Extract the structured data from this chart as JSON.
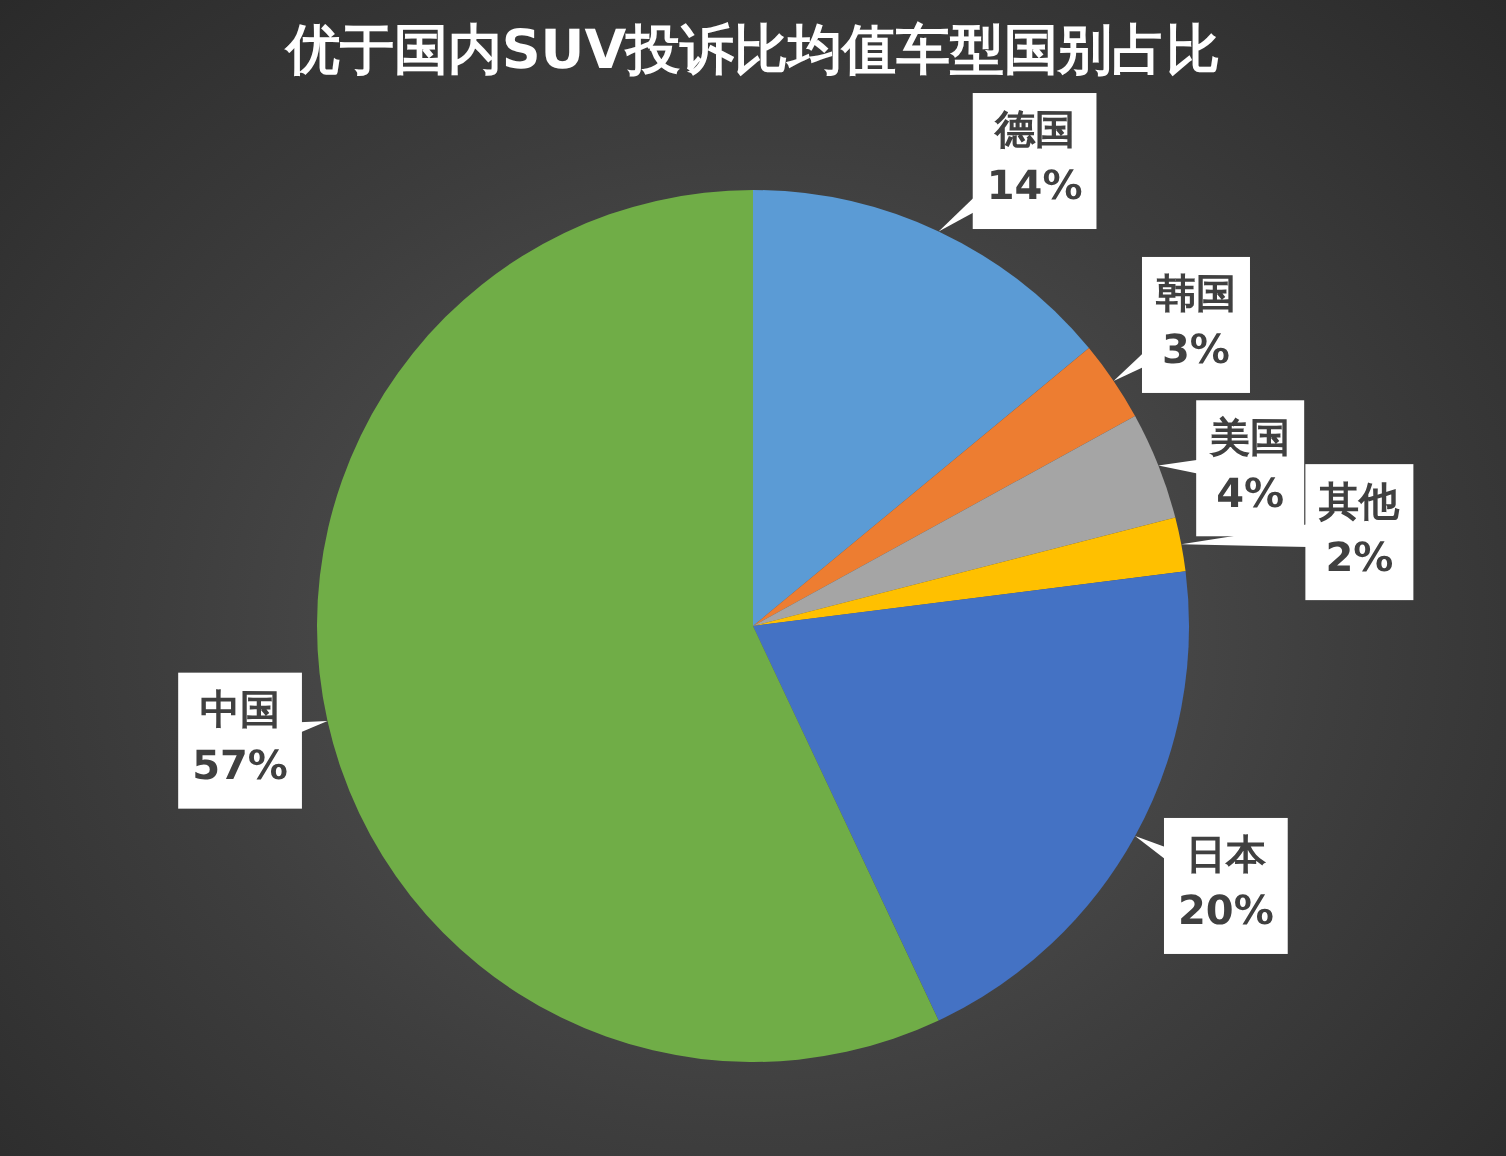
{
  "chart_data": {
    "type": "pie",
    "title": "优于国内SUV投诉比均值车型国别占比",
    "categories": [
      "德国",
      "韩国",
      "美国",
      "其他",
      "日本",
      "中国"
    ],
    "values": [
      14,
      3,
      4,
      2,
      20,
      57
    ],
    "colors": [
      "#5b9bd5",
      "#ed7d31",
      "#a5a5a5",
      "#ffc000",
      "#4472c4",
      "#70ad47"
    ],
    "value_labels": [
      "14%",
      "3%",
      "4%",
      "2%",
      "20%",
      "57%"
    ],
    "legend": false
  }
}
